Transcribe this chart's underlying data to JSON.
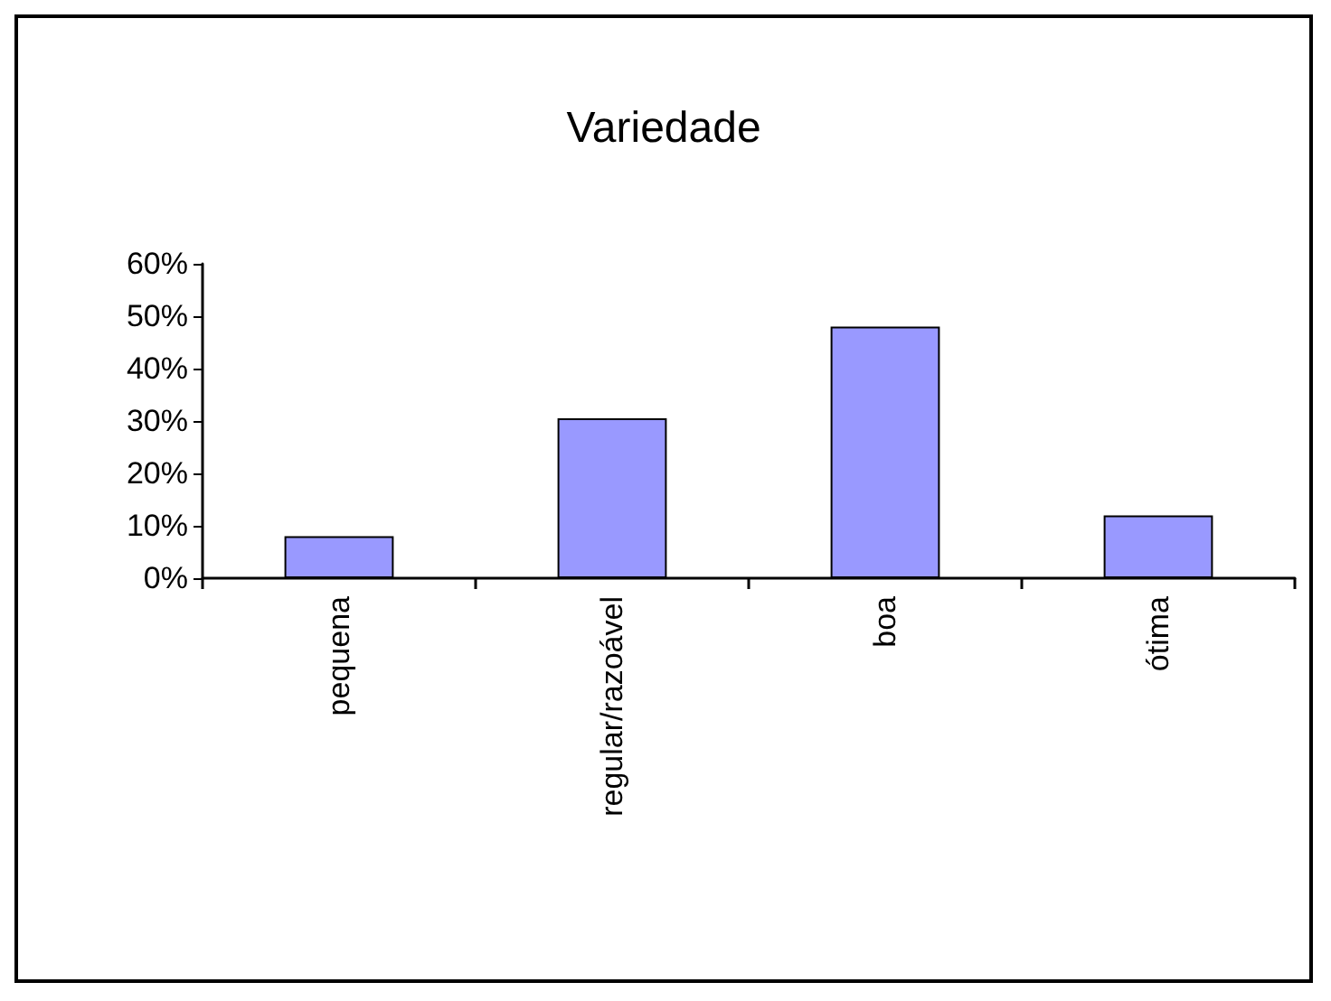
{
  "chart_data": {
    "type": "bar",
    "title": "Variedade",
    "categories": [
      "pequena",
      "regular/razoável",
      "boa",
      "ótima"
    ],
    "values": [
      8,
      30.5,
      48,
      12
    ],
    "color": "#9999ff",
    "ylim": [
      0,
      60
    ],
    "yticks": [
      {
        "value": 0,
        "label": "0%"
      },
      {
        "value": 10,
        "label": "10%"
      },
      {
        "value": 20,
        "label": "20%"
      },
      {
        "value": 30,
        "label": "30%"
      },
      {
        "value": 40,
        "label": "40%"
      },
      {
        "value": 50,
        "label": "50%"
      },
      {
        "value": 60,
        "label": "60%"
      }
    ],
    "grid": false
  }
}
